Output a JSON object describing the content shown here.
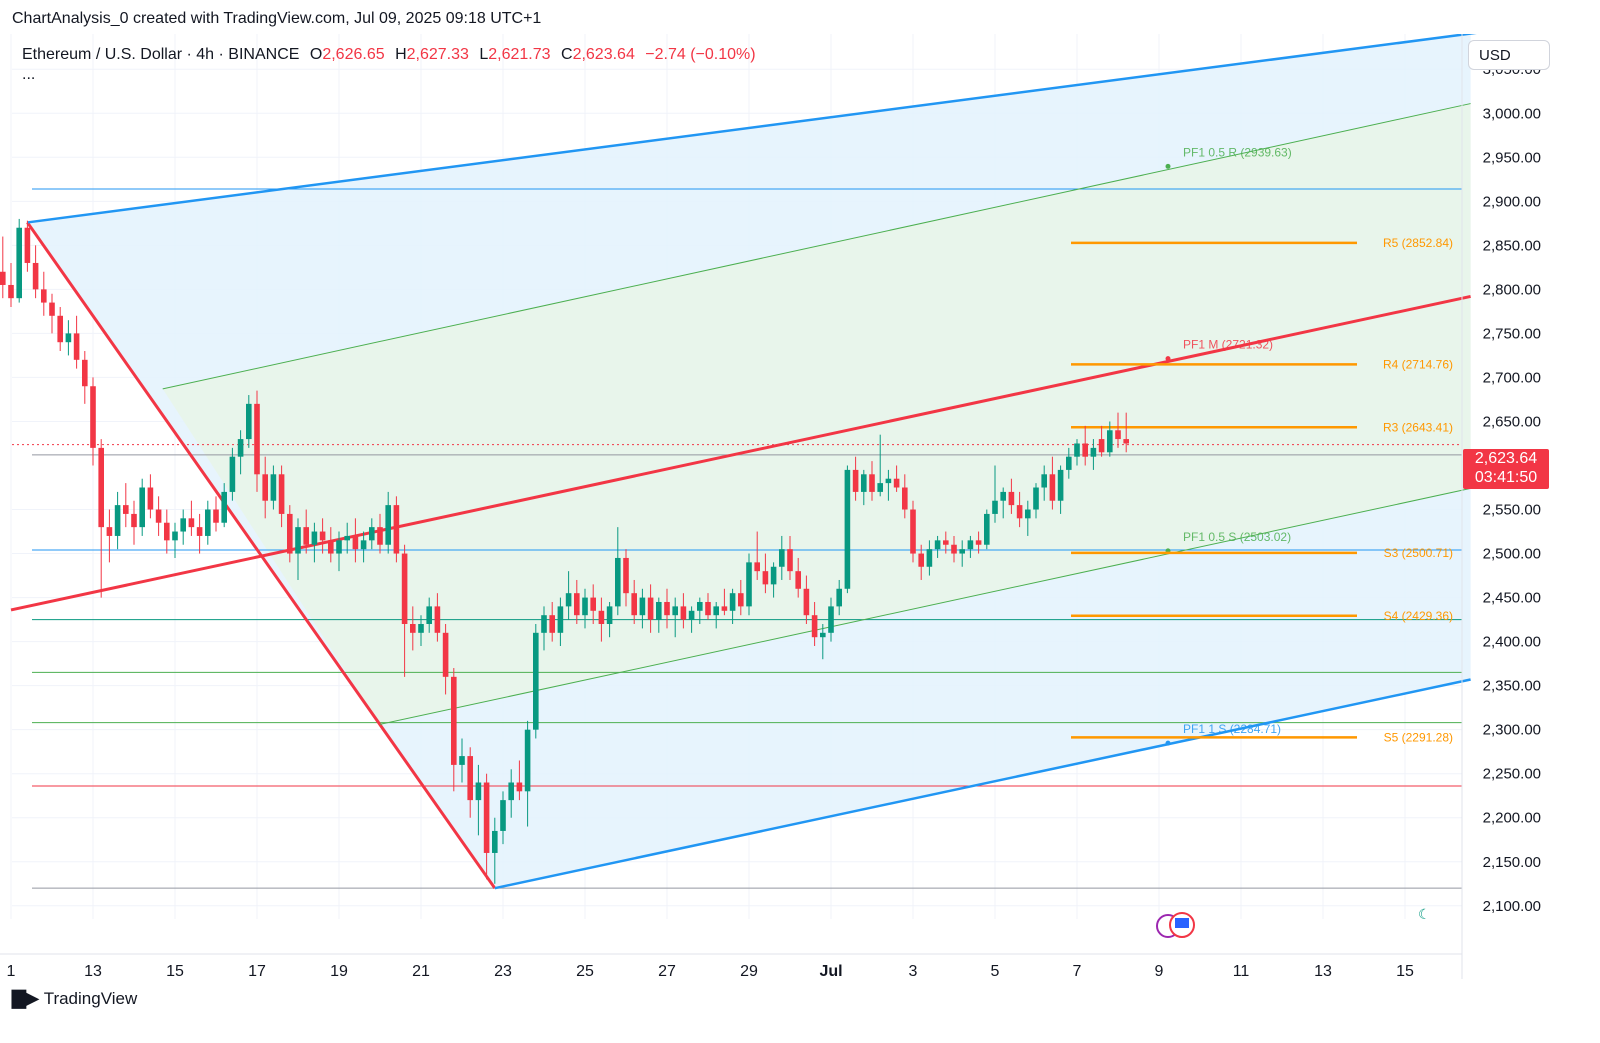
{
  "caption": "ChartAnalysis_0 created with TradingView.com, Jul 09, 2025 09:18 UTC+1",
  "legend": {
    "symbol": "Ethereum / U.S. Dollar · 4h · BINANCE",
    "o_label": "O",
    "o": "2,626.65",
    "h_label": "H",
    "h": "2,627.33",
    "l_label": "L",
    "l": "2,621.73",
    "c_label": "C",
    "c": "2,623.64",
    "change": "−2.74 (−0.10%)",
    "more": "..."
  },
  "currency": "USD",
  "price_tag": {
    "price": "2,623.64",
    "countdown": "03:41:50"
  },
  "brand": "TradingView",
  "colors": {
    "up": "#089981",
    "down": "#f23645",
    "blue": "#2196f3",
    "green": "#4caf50",
    "orange": "#ff9800",
    "red_line": "#f23645",
    "fill_blue": "#e3f2fd",
    "fill_green": "#e8f5e9"
  },
  "chart_data": {
    "type": "candlestick",
    "symbol": "ETHUSD",
    "interval": "4h",
    "yaxis": {
      "ticks": [
        2100,
        2150,
        2200,
        2250,
        2300,
        2350,
        2400,
        2450,
        2500,
        2550,
        2650,
        2700,
        2750,
        2800,
        2850,
        2900,
        2950,
        3000,
        3050
      ],
      "tick_labels": [
        "2,100.00",
        "2,150.00",
        "2,200.00",
        "2,250.00",
        "2,300.00",
        "2,350.00",
        "2,400.00",
        "2,450.00",
        "2,500.00",
        "2,550.00",
        "2,650.00",
        "2,700.00",
        "2,750.00",
        "2,800.00",
        "2,850.00",
        "2,900.00",
        "2,950.00",
        "3,000.00",
        "3,050.00"
      ],
      "ylim": [
        2085,
        3090
      ]
    },
    "xaxis": {
      "tick_labels": [
        "1",
        "13",
        "15",
        "17",
        "19",
        "21",
        "23",
        "25",
        "27",
        "29",
        "Jul",
        "3",
        "5",
        "7",
        "9",
        "11",
        "13",
        "15"
      ],
      "tick_days": [
        11,
        13,
        15,
        17,
        19,
        21,
        23,
        25,
        27,
        29,
        31,
        33,
        35,
        37,
        39,
        41,
        43,
        45
      ]
    },
    "last_price": 2623.64,
    "pivot_levels": [
      {
        "label": "R5 (2852.84)",
        "value": 2852.84
      },
      {
        "label": "R4 (2714.76)",
        "value": 2714.76
      },
      {
        "label": "R3 (2643.41)",
        "value": 2643.41
      },
      {
        "label": "S3 (2500.71)",
        "value": 2500.71
      },
      {
        "label": "S4 (2429.36)",
        "value": 2429.36
      },
      {
        "label": "S5 (2291.28)",
        "value": 2291.28
      }
    ],
    "pitchfork_labels": [
      {
        "label": "PF1 0.5 R (2939.63)",
        "value": 2939.63
      },
      {
        "label": "PF1 M (2721.32)",
        "value": 2721.32
      },
      {
        "label": "PF1 0.5 S (2503.02)",
        "value": 2503.02
      },
      {
        "label": "PF1 1 S (2284.71)",
        "value": 2284.71
      }
    ],
    "horizontal_lines": [
      {
        "value": 2914,
        "color": "#2196f3"
      },
      {
        "value": 2612,
        "color": "#9598a1"
      },
      {
        "value": 2504,
        "color": "#2196f3"
      },
      {
        "value": 2425,
        "color": "#089981"
      },
      {
        "value": 2365,
        "color": "#4caf50"
      },
      {
        "value": 2308,
        "color": "#4caf50"
      },
      {
        "value": 2236,
        "color": "#f23645"
      },
      {
        "value": 2120,
        "color": "#9598a1"
      }
    ],
    "pitchfork": {
      "pivot_a": {
        "day": 11.4,
        "price": 2876
      },
      "pivot_b": {
        "day": 22.8,
        "price": 2120
      },
      "handle_start": {
        "day": 11.0,
        "price": 2436
      },
      "median_end": {
        "day": 46.6,
        "price": 2792
      },
      "upper_end": {
        "day": 47.5,
        "price": 3096
      },
      "lower_end": {
        "day": 46.6,
        "price": 2357
      },
      "inner_upper_start": {
        "day": 14.7,
        "price": 2687
      },
      "inner_upper_end": {
        "day": 46.6,
        "price": 3011
      },
      "inner_lower_start": {
        "day": 20.0,
        "price": 2306
      },
      "inner_lower_end": {
        "day": 46.6,
        "price": 2574
      }
    },
    "candles": [
      {
        "t": 10.8,
        "o": 2820,
        "h": 2860,
        "l": 2790,
        "c": 2805
      },
      {
        "t": 11.0,
        "o": 2805,
        "h": 2830,
        "l": 2780,
        "c": 2790
      },
      {
        "t": 11.2,
        "o": 2790,
        "h": 2880,
        "l": 2785,
        "c": 2870
      },
      {
        "t": 11.4,
        "o": 2870,
        "h": 2878,
        "l": 2820,
        "c": 2830
      },
      {
        "t": 11.6,
        "o": 2830,
        "h": 2850,
        "l": 2790,
        "c": 2800
      },
      {
        "t": 11.8,
        "o": 2800,
        "h": 2820,
        "l": 2770,
        "c": 2785
      },
      {
        "t": 12.0,
        "o": 2785,
        "h": 2795,
        "l": 2750,
        "c": 2770
      },
      {
        "t": 12.2,
        "o": 2770,
        "h": 2780,
        "l": 2730,
        "c": 2740
      },
      {
        "t": 12.4,
        "o": 2740,
        "h": 2765,
        "l": 2725,
        "c": 2750
      },
      {
        "t": 12.6,
        "o": 2750,
        "h": 2770,
        "l": 2710,
        "c": 2720
      },
      {
        "t": 12.8,
        "o": 2720,
        "h": 2730,
        "l": 2670,
        "c": 2690
      },
      {
        "t": 13.0,
        "o": 2690,
        "h": 2700,
        "l": 2600,
        "c": 2620
      },
      {
        "t": 13.2,
        "o": 2620,
        "h": 2630,
        "l": 2450,
        "c": 2530
      },
      {
        "t": 13.4,
        "o": 2530,
        "h": 2550,
        "l": 2490,
        "c": 2520
      },
      {
        "t": 13.6,
        "o": 2520,
        "h": 2570,
        "l": 2505,
        "c": 2555
      },
      {
        "t": 13.8,
        "o": 2555,
        "h": 2580,
        "l": 2530,
        "c": 2545
      },
      {
        "t": 14.0,
        "o": 2545,
        "h": 2560,
        "l": 2510,
        "c": 2530
      },
      {
        "t": 14.2,
        "o": 2530,
        "h": 2585,
        "l": 2520,
        "c": 2575
      },
      {
        "t": 14.4,
        "o": 2575,
        "h": 2590,
        "l": 2540,
        "c": 2550
      },
      {
        "t": 14.6,
        "o": 2550,
        "h": 2565,
        "l": 2520,
        "c": 2535
      },
      {
        "t": 14.8,
        "o": 2535,
        "h": 2550,
        "l": 2500,
        "c": 2515
      },
      {
        "t": 15.0,
        "o": 2515,
        "h": 2535,
        "l": 2495,
        "c": 2525
      },
      {
        "t": 15.2,
        "o": 2525,
        "h": 2550,
        "l": 2510,
        "c": 2540
      },
      {
        "t": 15.4,
        "o": 2540,
        "h": 2560,
        "l": 2520,
        "c": 2530
      },
      {
        "t": 15.6,
        "o": 2530,
        "h": 2545,
        "l": 2500,
        "c": 2520
      },
      {
        "t": 15.8,
        "o": 2520,
        "h": 2560,
        "l": 2510,
        "c": 2550
      },
      {
        "t": 16.0,
        "o": 2550,
        "h": 2565,
        "l": 2525,
        "c": 2535
      },
      {
        "t": 16.2,
        "o": 2535,
        "h": 2580,
        "l": 2530,
        "c": 2570
      },
      {
        "t": 16.4,
        "o": 2570,
        "h": 2620,
        "l": 2560,
        "c": 2610
      },
      {
        "t": 16.6,
        "o": 2610,
        "h": 2640,
        "l": 2590,
        "c": 2630
      },
      {
        "t": 16.8,
        "o": 2630,
        "h": 2680,
        "l": 2620,
        "c": 2670
      },
      {
        "t": 17.0,
        "o": 2670,
        "h": 2685,
        "l": 2570,
        "c": 2590
      },
      {
        "t": 17.2,
        "o": 2590,
        "h": 2610,
        "l": 2540,
        "c": 2560
      },
      {
        "t": 17.4,
        "o": 2560,
        "h": 2600,
        "l": 2550,
        "c": 2590
      },
      {
        "t": 17.6,
        "o": 2590,
        "h": 2600,
        "l": 2530,
        "c": 2545
      },
      {
        "t": 17.8,
        "o": 2545,
        "h": 2555,
        "l": 2490,
        "c": 2500
      },
      {
        "t": 18.0,
        "o": 2500,
        "h": 2540,
        "l": 2470,
        "c": 2530
      },
      {
        "t": 18.2,
        "o": 2530,
        "h": 2550,
        "l": 2500,
        "c": 2510
      },
      {
        "t": 18.4,
        "o": 2510,
        "h": 2535,
        "l": 2490,
        "c": 2525
      },
      {
        "t": 18.6,
        "o": 2525,
        "h": 2540,
        "l": 2500,
        "c": 2515
      },
      {
        "t": 18.8,
        "o": 2515,
        "h": 2530,
        "l": 2490,
        "c": 2500
      },
      {
        "t": 19.0,
        "o": 2500,
        "h": 2525,
        "l": 2480,
        "c": 2515
      },
      {
        "t": 19.2,
        "o": 2515,
        "h": 2535,
        "l": 2500,
        "c": 2520
      },
      {
        "t": 19.4,
        "o": 2520,
        "h": 2540,
        "l": 2490,
        "c": 2505
      },
      {
        "t": 19.6,
        "o": 2505,
        "h": 2525,
        "l": 2490,
        "c": 2515
      },
      {
        "t": 19.8,
        "o": 2515,
        "h": 2540,
        "l": 2505,
        "c": 2530
      },
      {
        "t": 20.0,
        "o": 2530,
        "h": 2545,
        "l": 2500,
        "c": 2510
      },
      {
        "t": 20.2,
        "o": 2510,
        "h": 2570,
        "l": 2500,
        "c": 2555
      },
      {
        "t": 20.4,
        "o": 2555,
        "h": 2565,
        "l": 2490,
        "c": 2500
      },
      {
        "t": 20.6,
        "o": 2500,
        "h": 2510,
        "l": 2360,
        "c": 2420
      },
      {
        "t": 20.8,
        "o": 2420,
        "h": 2440,
        "l": 2390,
        "c": 2410
      },
      {
        "t": 21.0,
        "o": 2410,
        "h": 2430,
        "l": 2395,
        "c": 2420
      },
      {
        "t": 21.2,
        "o": 2420,
        "h": 2450,
        "l": 2410,
        "c": 2440
      },
      {
        "t": 21.4,
        "o": 2440,
        "h": 2455,
        "l": 2400,
        "c": 2410
      },
      {
        "t": 21.6,
        "o": 2410,
        "h": 2420,
        "l": 2340,
        "c": 2360
      },
      {
        "t": 21.8,
        "o": 2360,
        "h": 2370,
        "l": 2230,
        "c": 2260
      },
      {
        "t": 22.0,
        "o": 2260,
        "h": 2290,
        "l": 2240,
        "c": 2270
      },
      {
        "t": 22.2,
        "o": 2270,
        "h": 2280,
        "l": 2200,
        "c": 2220
      },
      {
        "t": 22.4,
        "o": 2220,
        "h": 2260,
        "l": 2180,
        "c": 2240
      },
      {
        "t": 22.6,
        "o": 2240,
        "h": 2250,
        "l": 2130,
        "c": 2160
      },
      {
        "t": 22.8,
        "o": 2160,
        "h": 2200,
        "l": 2125,
        "c": 2185
      },
      {
        "t": 23.0,
        "o": 2185,
        "h": 2230,
        "l": 2170,
        "c": 2220
      },
      {
        "t": 23.2,
        "o": 2220,
        "h": 2255,
        "l": 2200,
        "c": 2240
      },
      {
        "t": 23.4,
        "o": 2240,
        "h": 2265,
        "l": 2220,
        "c": 2230
      },
      {
        "t": 23.6,
        "o": 2230,
        "h": 2310,
        "l": 2190,
        "c": 2300
      },
      {
        "t": 23.8,
        "o": 2300,
        "h": 2420,
        "l": 2290,
        "c": 2410
      },
      {
        "t": 24.0,
        "o": 2410,
        "h": 2440,
        "l": 2390,
        "c": 2430
      },
      {
        "t": 24.2,
        "o": 2430,
        "h": 2445,
        "l": 2400,
        "c": 2410
      },
      {
        "t": 24.4,
        "o": 2410,
        "h": 2450,
        "l": 2395,
        "c": 2440
      },
      {
        "t": 24.6,
        "o": 2440,
        "h": 2480,
        "l": 2425,
        "c": 2455
      },
      {
        "t": 24.8,
        "o": 2455,
        "h": 2470,
        "l": 2420,
        "c": 2430
      },
      {
        "t": 25.0,
        "o": 2430,
        "h": 2460,
        "l": 2415,
        "c": 2450
      },
      {
        "t": 25.2,
        "o": 2450,
        "h": 2465,
        "l": 2420,
        "c": 2435
      },
      {
        "t": 25.4,
        "o": 2435,
        "h": 2450,
        "l": 2400,
        "c": 2420
      },
      {
        "t": 25.6,
        "o": 2420,
        "h": 2445,
        "l": 2405,
        "c": 2440
      },
      {
        "t": 25.8,
        "o": 2440,
        "h": 2530,
        "l": 2430,
        "c": 2495
      },
      {
        "t": 26.0,
        "o": 2495,
        "h": 2505,
        "l": 2440,
        "c": 2455
      },
      {
        "t": 26.2,
        "o": 2455,
        "h": 2470,
        "l": 2420,
        "c": 2430
      },
      {
        "t": 26.4,
        "o": 2430,
        "h": 2460,
        "l": 2415,
        "c": 2450
      },
      {
        "t": 26.6,
        "o": 2450,
        "h": 2465,
        "l": 2410,
        "c": 2425
      },
      {
        "t": 26.8,
        "o": 2425,
        "h": 2450,
        "l": 2410,
        "c": 2445
      },
      {
        "t": 27.0,
        "o": 2445,
        "h": 2460,
        "l": 2415,
        "c": 2430
      },
      {
        "t": 27.2,
        "o": 2430,
        "h": 2450,
        "l": 2405,
        "c": 2440
      },
      {
        "t": 27.4,
        "o": 2440,
        "h": 2455,
        "l": 2415,
        "c": 2425
      },
      {
        "t": 27.6,
        "o": 2425,
        "h": 2440,
        "l": 2410,
        "c": 2435
      },
      {
        "t": 27.8,
        "o": 2435,
        "h": 2450,
        "l": 2420,
        "c": 2445
      },
      {
        "t": 28.0,
        "o": 2445,
        "h": 2455,
        "l": 2425,
        "c": 2430
      },
      {
        "t": 28.2,
        "o": 2430,
        "h": 2445,
        "l": 2415,
        "c": 2440
      },
      {
        "t": 28.4,
        "o": 2440,
        "h": 2460,
        "l": 2430,
        "c": 2435
      },
      {
        "t": 28.6,
        "o": 2435,
        "h": 2460,
        "l": 2420,
        "c": 2455
      },
      {
        "t": 28.8,
        "o": 2455,
        "h": 2470,
        "l": 2430,
        "c": 2440
      },
      {
        "t": 29.0,
        "o": 2440,
        "h": 2500,
        "l": 2430,
        "c": 2490
      },
      {
        "t": 29.2,
        "o": 2490,
        "h": 2525,
        "l": 2470,
        "c": 2480
      },
      {
        "t": 29.4,
        "o": 2480,
        "h": 2500,
        "l": 2455,
        "c": 2465
      },
      {
        "t": 29.6,
        "o": 2465,
        "h": 2490,
        "l": 2450,
        "c": 2485
      },
      {
        "t": 29.8,
        "o": 2485,
        "h": 2520,
        "l": 2470,
        "c": 2505
      },
      {
        "t": 30.0,
        "o": 2505,
        "h": 2520,
        "l": 2470,
        "c": 2480
      },
      {
        "t": 30.2,
        "o": 2480,
        "h": 2495,
        "l": 2450,
        "c": 2460
      },
      {
        "t": 30.4,
        "o": 2460,
        "h": 2475,
        "l": 2420,
        "c": 2430
      },
      {
        "t": 30.6,
        "o": 2430,
        "h": 2445,
        "l": 2395,
        "c": 2405
      },
      {
        "t": 30.8,
        "o": 2405,
        "h": 2420,
        "l": 2380,
        "c": 2410
      },
      {
        "t": 31.0,
        "o": 2410,
        "h": 2450,
        "l": 2400,
        "c": 2440
      },
      {
        "t": 31.2,
        "o": 2440,
        "h": 2470,
        "l": 2430,
        "c": 2460
      },
      {
        "t": 31.4,
        "o": 2460,
        "h": 2600,
        "l": 2455,
        "c": 2595
      },
      {
        "t": 31.6,
        "o": 2595,
        "h": 2610,
        "l": 2560,
        "c": 2570
      },
      {
        "t": 31.8,
        "o": 2570,
        "h": 2595,
        "l": 2555,
        "c": 2590
      },
      {
        "t": 32.0,
        "o": 2590,
        "h": 2605,
        "l": 2560,
        "c": 2570
      },
      {
        "t": 32.2,
        "o": 2570,
        "h": 2635,
        "l": 2565,
        "c": 2580
      },
      {
        "t": 32.4,
        "o": 2580,
        "h": 2595,
        "l": 2560,
        "c": 2585
      },
      {
        "t": 32.6,
        "o": 2585,
        "h": 2600,
        "l": 2570,
        "c": 2575
      },
      {
        "t": 32.8,
        "o": 2575,
        "h": 2590,
        "l": 2540,
        "c": 2550
      },
      {
        "t": 33.0,
        "o": 2550,
        "h": 2560,
        "l": 2490,
        "c": 2500
      },
      {
        "t": 33.2,
        "o": 2500,
        "h": 2510,
        "l": 2470,
        "c": 2485
      },
      {
        "t": 33.4,
        "o": 2485,
        "h": 2515,
        "l": 2475,
        "c": 2505
      },
      {
        "t": 33.6,
        "o": 2505,
        "h": 2520,
        "l": 2495,
        "c": 2515
      },
      {
        "t": 33.8,
        "o": 2515,
        "h": 2525,
        "l": 2500,
        "c": 2510
      },
      {
        "t": 34.0,
        "o": 2510,
        "h": 2520,
        "l": 2490,
        "c": 2500
      },
      {
        "t": 34.2,
        "o": 2500,
        "h": 2515,
        "l": 2485,
        "c": 2505
      },
      {
        "t": 34.4,
        "o": 2505,
        "h": 2520,
        "l": 2495,
        "c": 2515
      },
      {
        "t": 34.6,
        "o": 2515,
        "h": 2525,
        "l": 2500,
        "c": 2510
      },
      {
        "t": 34.8,
        "o": 2510,
        "h": 2550,
        "l": 2505,
        "c": 2545
      },
      {
        "t": 35.0,
        "o": 2545,
        "h": 2600,
        "l": 2535,
        "c": 2560
      },
      {
        "t": 35.2,
        "o": 2560,
        "h": 2575,
        "l": 2540,
        "c": 2570
      },
      {
        "t": 35.4,
        "o": 2570,
        "h": 2585,
        "l": 2545,
        "c": 2555
      },
      {
        "t": 35.6,
        "o": 2555,
        "h": 2570,
        "l": 2530,
        "c": 2540
      },
      {
        "t": 35.8,
        "o": 2540,
        "h": 2560,
        "l": 2520,
        "c": 2550
      },
      {
        "t": 36.0,
        "o": 2550,
        "h": 2580,
        "l": 2540,
        "c": 2575
      },
      {
        "t": 36.2,
        "o": 2575,
        "h": 2600,
        "l": 2560,
        "c": 2590
      },
      {
        "t": 36.4,
        "o": 2590,
        "h": 2610,
        "l": 2550,
        "c": 2560
      },
      {
        "t": 36.6,
        "o": 2560,
        "h": 2600,
        "l": 2545,
        "c": 2595
      },
      {
        "t": 36.8,
        "o": 2595,
        "h": 2620,
        "l": 2585,
        "c": 2610
      },
      {
        "t": 37.0,
        "o": 2610,
        "h": 2630,
        "l": 2600,
        "c": 2625
      },
      {
        "t": 37.2,
        "o": 2625,
        "h": 2645,
        "l": 2600,
        "c": 2610
      },
      {
        "t": 37.4,
        "o": 2610,
        "h": 2630,
        "l": 2595,
        "c": 2620
      },
      {
        "t": 37.6,
        "o": 2630,
        "h": 2645,
        "l": 2610,
        "c": 2615
      },
      {
        "t": 37.8,
        "o": 2615,
        "h": 2650,
        "l": 2610,
        "c": 2640
      },
      {
        "t": 38.0,
        "o": 2640,
        "h": 2660,
        "l": 2620,
        "c": 2630
      },
      {
        "t": 38.2,
        "o": 2630,
        "h": 2660,
        "l": 2615,
        "c": 2625
      }
    ]
  }
}
